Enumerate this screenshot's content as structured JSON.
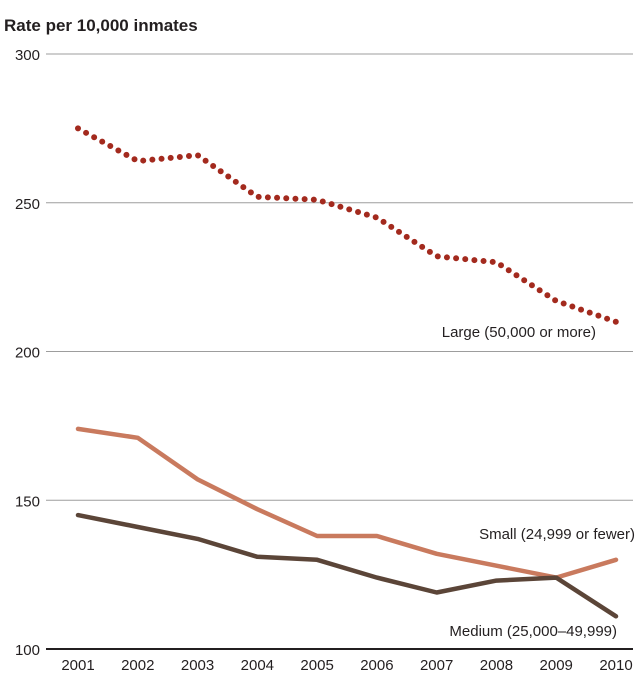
{
  "chart_data": {
    "type": "line",
    "ylabel": "Rate per 10,000 inmates",
    "xlabel": "",
    "title": "",
    "ylim": [
      100,
      300
    ],
    "yticks": [
      100,
      150,
      200,
      250,
      300
    ],
    "x": [
      "2001",
      "2002",
      "2003",
      "2004",
      "2005",
      "2006",
      "2007",
      "2008",
      "2009",
      "2010"
    ],
    "grid": true,
    "series": [
      {
        "name": "Large (50,000 or more)",
        "style": "dotted",
        "color": "#a32a1e",
        "values": [
          275,
          264,
          266,
          252,
          251,
          245,
          232,
          230,
          217,
          210
        ]
      },
      {
        "name": "Small (24,999 or fewer)",
        "style": "solid",
        "color": "#c97a5e",
        "values": [
          174,
          171,
          157,
          147,
          138,
          138,
          132,
          128,
          124,
          130
        ]
      },
      {
        "name": "Medium (25,000–49,999)",
        "style": "solid",
        "color": "#5b4538",
        "values": [
          145,
          141,
          137,
          131,
          130,
          124,
          119,
          123,
          124,
          111
        ]
      }
    ]
  }
}
